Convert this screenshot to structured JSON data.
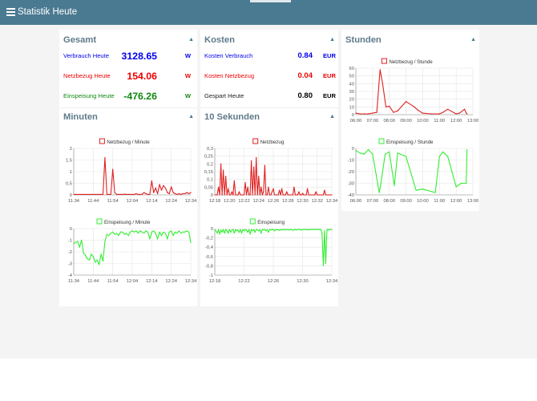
{
  "app": {
    "title": "Statistik Heute"
  },
  "colors": {
    "header": "#4a7a91",
    "blue": "#0000ee",
    "red": "#ee0000",
    "green": "#118811",
    "line_red": "#e02020",
    "line_green": "#33ee33"
  },
  "gesamt": {
    "title": "Gesamt",
    "rows": [
      {
        "label": "Verbrauch Heute",
        "value": "3128.65",
        "unit": "W"
      },
      {
        "label": "Netzbezug Heute",
        "value": "154.06",
        "unit": "W"
      },
      {
        "label": "Einspeisung Heute",
        "value": "-476.26",
        "unit": "W"
      }
    ]
  },
  "kosten": {
    "title": "Kosten",
    "rows": [
      {
        "label": "Kosten Verbrauch",
        "value": "0.84",
        "unit": "EUR"
      },
      {
        "label": "Kosten Netzbezug",
        "value": "0.04",
        "unit": "EUR"
      },
      {
        "label": "Gespart Heute",
        "value": "0.80",
        "unit": "EUR"
      }
    ]
  },
  "minuten": {
    "title": "Minuten"
  },
  "sekunden": {
    "title": "10 Sekunden"
  },
  "stunden": {
    "title": "Stunden"
  },
  "chart_data": [
    {
      "id": "netz-minute",
      "type": "line",
      "legend": "Netzbezug / Minute",
      "color": "red",
      "ylim": [
        0,
        2
      ],
      "yticks": [
        "0",
        "0,5",
        "1",
        "1,5",
        "2"
      ],
      "xticks": [
        "11:34",
        "11:44",
        "11:54",
        "12:04",
        "12:14",
        "12:24",
        "12:34"
      ],
      "x": [
        0,
        1,
        2,
        3,
        4,
        5,
        6,
        7,
        8,
        9,
        10,
        11,
        12,
        13,
        14,
        15,
        16,
        17,
        18,
        19,
        20,
        21,
        22,
        23,
        24,
        25,
        26,
        27,
        28,
        29,
        30,
        31,
        32,
        33,
        34,
        35,
        36,
        37,
        38,
        39,
        40,
        41,
        42,
        43,
        44,
        45,
        46,
        47,
        48,
        49,
        50,
        51,
        52,
        53,
        54,
        55,
        56,
        57,
        58,
        59,
        60
      ],
      "values": [
        0.02,
        0.02,
        0.02,
        0.02,
        0.02,
        0.02,
        0.02,
        0.02,
        0.02,
        0.02,
        0.02,
        0.02,
        0.02,
        0.02,
        0.02,
        0.02,
        1.6,
        0.02,
        0.02,
        0.02,
        1.1,
        0.1,
        0.02,
        0.02,
        0.02,
        0.02,
        0.03,
        0.02,
        0.02,
        0.02,
        0.02,
        0.02,
        0.05,
        0.02,
        0.02,
        0.02,
        0.1,
        0.05,
        0.02,
        0.02,
        0.6,
        0.1,
        0.3,
        0.05,
        0.45,
        0.2,
        0.4,
        0.3,
        0.1,
        0.05,
        0.35,
        0.1,
        0.05,
        0.02,
        0.05,
        0.02,
        0.05,
        0.05,
        0.1,
        0.05,
        0.1
      ]
    },
    {
      "id": "einsp-minute",
      "type": "line",
      "legend": "Einspeisung / Minute",
      "color": "green",
      "ylim": [
        -4,
        0
      ],
      "yticks": [
        "-4",
        "-3",
        "-2",
        "-1",
        "0"
      ],
      "xticks": [
        "11:34",
        "11:44",
        "11:54",
        "12:04",
        "12:14",
        "12:24",
        "12:34"
      ],
      "x": [
        0,
        1,
        2,
        3,
        4,
        5,
        6,
        7,
        8,
        9,
        10,
        11,
        12,
        13,
        14,
        15,
        16,
        17,
        18,
        19,
        20,
        21,
        22,
        23,
        24,
        25,
        26,
        27,
        28,
        29,
        30,
        31,
        32,
        33,
        34,
        35,
        36,
        37,
        38,
        39,
        40,
        41,
        42,
        43,
        44,
        45,
        46,
        47,
        48,
        49,
        50,
        51,
        52,
        53,
        54,
        55,
        56,
        57,
        58,
        59,
        60
      ],
      "values": [
        -1.3,
        -1.2,
        -1.1,
        -1.6,
        -1.0,
        -2.1,
        -2.3,
        -2.6,
        -2.7,
        -2.2,
        -2.4,
        -2.9,
        -2.7,
        -3.1,
        -2.2,
        -2.8,
        -1.1,
        -0.5,
        -0.6,
        -0.4,
        -0.3,
        -0.5,
        -0.4,
        -0.6,
        -0.3,
        -0.3,
        -0.5,
        -0.4,
        -0.6,
        -0.3,
        -0.2,
        -0.3,
        -0.2,
        -0.4,
        -0.2,
        -0.3,
        -0.4,
        -0.2,
        -0.3,
        -0.9,
        -0.3,
        -0.2,
        -0.4,
        -0.9,
        -0.3,
        -0.6,
        -0.3,
        -0.4,
        -0.9,
        -0.3,
        -0.2,
        -0.6,
        -0.3,
        -0.4,
        -0.2,
        -0.4,
        -0.3,
        -0.3,
        -0.2,
        -0.3,
        -1.2
      ]
    },
    {
      "id": "netz-10s",
      "type": "line",
      "legend": "Netzbezug",
      "color": "red",
      "ylim": [
        0,
        0.3
      ],
      "yticks": [
        "0",
        "0,05",
        "0,1",
        "0,15",
        "0,2",
        "0,25",
        "0,3"
      ],
      "xticks": [
        "12:18",
        "12:20",
        "12:22",
        "12:24",
        "12:26",
        "12:28",
        "12:30",
        "12:32",
        "12:34"
      ],
      "x": [
        0,
        1,
        2,
        3,
        4,
        5,
        6,
        7,
        8,
        9,
        10,
        11,
        12,
        13,
        14,
        15,
        16,
        17,
        18,
        19,
        20,
        21,
        22,
        23,
        24,
        25,
        26,
        27,
        28,
        29,
        30,
        31,
        32,
        33,
        34,
        35,
        36,
        37,
        38,
        39,
        40,
        41,
        42,
        43,
        44,
        45,
        46,
        47,
        48,
        49,
        50,
        51,
        52,
        53,
        54,
        55,
        56,
        57,
        58,
        59,
        60,
        61,
        62,
        63,
        64,
        65,
        66,
        67,
        68,
        69,
        70,
        71,
        72,
        73,
        74,
        75,
        76,
        77,
        78,
        79,
        80,
        81,
        82,
        83,
        84,
        85,
        86,
        87,
        88,
        89,
        90,
        91,
        92,
        93,
        94,
        95,
        96
      ],
      "values": [
        0,
        0,
        0,
        0.05,
        0,
        0.2,
        0,
        0.16,
        0,
        0.12,
        0,
        0.04,
        0,
        0,
        0.02,
        0,
        0.09,
        0,
        0,
        0,
        0.02,
        0,
        0,
        0,
        0,
        0.08,
        0,
        0.05,
        0,
        0,
        0.22,
        0,
        0.18,
        0,
        0.24,
        0,
        0.12,
        0,
        0.05,
        0,
        0.02,
        0.19,
        0,
        0,
        0.05,
        0,
        0,
        0.02,
        0.04,
        0,
        0,
        0,
        0,
        0.03,
        0,
        0.04,
        0,
        0,
        0,
        0.02,
        0,
        0,
        0,
        0,
        0,
        0.05,
        0,
        0,
        0,
        0.02,
        0,
        0,
        0.01,
        0,
        0,
        0,
        0.04,
        0,
        0,
        0,
        0,
        0,
        0,
        0.02,
        0,
        0,
        0,
        0,
        0,
        0,
        0.03,
        0,
        0,
        0,
        0,
        0,
        0
      ]
    },
    {
      "id": "einsp-10s",
      "type": "line",
      "legend": "Einspeisung",
      "color": "green",
      "ylim": [
        -1,
        0
      ],
      "yticks": [
        "-1",
        "-0,8",
        "-0,6",
        "-0,4",
        "-0,2",
        "0"
      ],
      "xticks": [
        "12:18",
        "12:22",
        "12:26",
        "12:30",
        "12:34"
      ],
      "x": [
        0,
        1,
        2,
        3,
        4,
        5,
        6,
        7,
        8,
        9,
        10,
        11,
        12,
        13,
        14,
        15,
        16,
        17,
        18,
        19,
        20,
        21,
        22,
        23,
        24,
        25,
        26,
        27,
        28,
        29,
        30,
        31,
        32,
        33,
        34,
        35,
        36,
        37,
        38,
        39,
        40,
        41,
        42,
        43,
        44,
        45,
        46,
        47,
        48,
        49,
        50,
        51,
        52,
        53,
        54,
        55,
        56,
        57,
        58,
        59,
        60,
        61,
        62,
        63,
        64,
        65,
        66,
        67,
        68,
        69,
        70,
        71,
        72,
        73,
        74,
        75,
        76,
        77,
        78,
        79,
        80,
        81,
        82,
        83,
        84,
        85,
        86,
        87,
        88,
        89,
        90,
        91,
        92,
        93,
        94,
        95,
        96
      ],
      "values": [
        -0.02,
        -0.05,
        -0.1,
        -0.02,
        -0.12,
        -0.03,
        -0.08,
        -0.02,
        -0.1,
        -0.02,
        -0.05,
        -0.1,
        -0.02,
        -0.08,
        -0.03,
        -0.02,
        -0.1,
        -0.02,
        -0.05,
        -0.03,
        -0.08,
        -0.02,
        -0.1,
        -0.02,
        -0.05,
        -0.02,
        -0.03,
        -0.08,
        -0.02,
        -0.12,
        -0.02,
        -0.05,
        -0.02,
        -0.08,
        -0.02,
        -0.03,
        -0.05,
        -0.02,
        -0.1,
        -0.02,
        -0.03,
        -0.02,
        -0.05,
        -0.02,
        -0.08,
        -0.02,
        -0.03,
        -0.02,
        -0.02,
        -0.05,
        -0.02,
        -0.03,
        -0.02,
        -0.04,
        -0.02,
        -0.03,
        -0.02,
        -0.02,
        -0.03,
        -0.02,
        -0.02,
        -0.03,
        -0.02,
        -0.02,
        -0.04,
        -0.02,
        -0.02,
        -0.03,
        -0.02,
        -0.02,
        -0.02,
        -0.03,
        -0.02,
        -0.02,
        -0.02,
        -0.02,
        -0.03,
        -0.02,
        -0.02,
        -0.02,
        -0.02,
        -0.02,
        -0.02,
        -0.02,
        -0.02,
        -0.02,
        -0.02,
        -0.02,
        -0.1,
        -0.8,
        -0.05,
        -0.75,
        -0.02,
        -0.03,
        -0.02,
        -0.02,
        -0.02
      ]
    },
    {
      "id": "netz-stunde",
      "type": "line",
      "legend": "Netzbezug / Stunde",
      "color": "red",
      "ylim": [
        0,
        60
      ],
      "yticks": [
        "0",
        "10",
        "20",
        "30",
        "40",
        "50",
        "60"
      ],
      "xticks": [
        "06:00",
        "07:00",
        "08:00",
        "09:00",
        "10:00",
        "11:00",
        "12:00",
        "13:00"
      ],
      "x": [
        6.0,
        6.25,
        6.5,
        6.75,
        7.0,
        7.25,
        7.45,
        7.6,
        7.8,
        8.0,
        8.25,
        8.5,
        9.0,
        9.5,
        9.7,
        10.0,
        10.5,
        11.0,
        11.2,
        11.5,
        12.0,
        12.2,
        12.5,
        12.6,
        12.65
      ],
      "values": [
        2,
        1,
        1,
        1,
        2,
        3,
        58,
        40,
        10,
        11,
        3,
        5,
        17,
        10,
        6,
        2,
        1,
        1,
        3,
        7,
        1,
        2,
        7,
        2,
        1
      ]
    },
    {
      "id": "einsp-stunde",
      "type": "line",
      "legend": "Einspeisung / Stunde",
      "color": "green",
      "ylim": [
        -40,
        0
      ],
      "yticks": [
        "-40",
        "-30",
        "-20",
        "-10",
        "0"
      ],
      "xticks": [
        "06:00",
        "07:00",
        "08:00",
        "09:00",
        "10:00",
        "11:00",
        "12:00",
        "13:00"
      ],
      "x": [
        6.0,
        6.25,
        6.5,
        6.75,
        7.0,
        7.4,
        7.5,
        7.75,
        8.0,
        8.3,
        8.5,
        9.0,
        9.6,
        10.0,
        10.75,
        11.0,
        11.2,
        11.5,
        12.0,
        12.3,
        12.6,
        12.65
      ],
      "values": [
        -2,
        -4,
        -5,
        -1,
        -5,
        -38,
        -30,
        -5,
        -3,
        -32,
        -4,
        -7,
        -36,
        -35,
        -38,
        -7,
        -3,
        -7,
        -33,
        -30,
        -30,
        -1
      ]
    }
  ]
}
